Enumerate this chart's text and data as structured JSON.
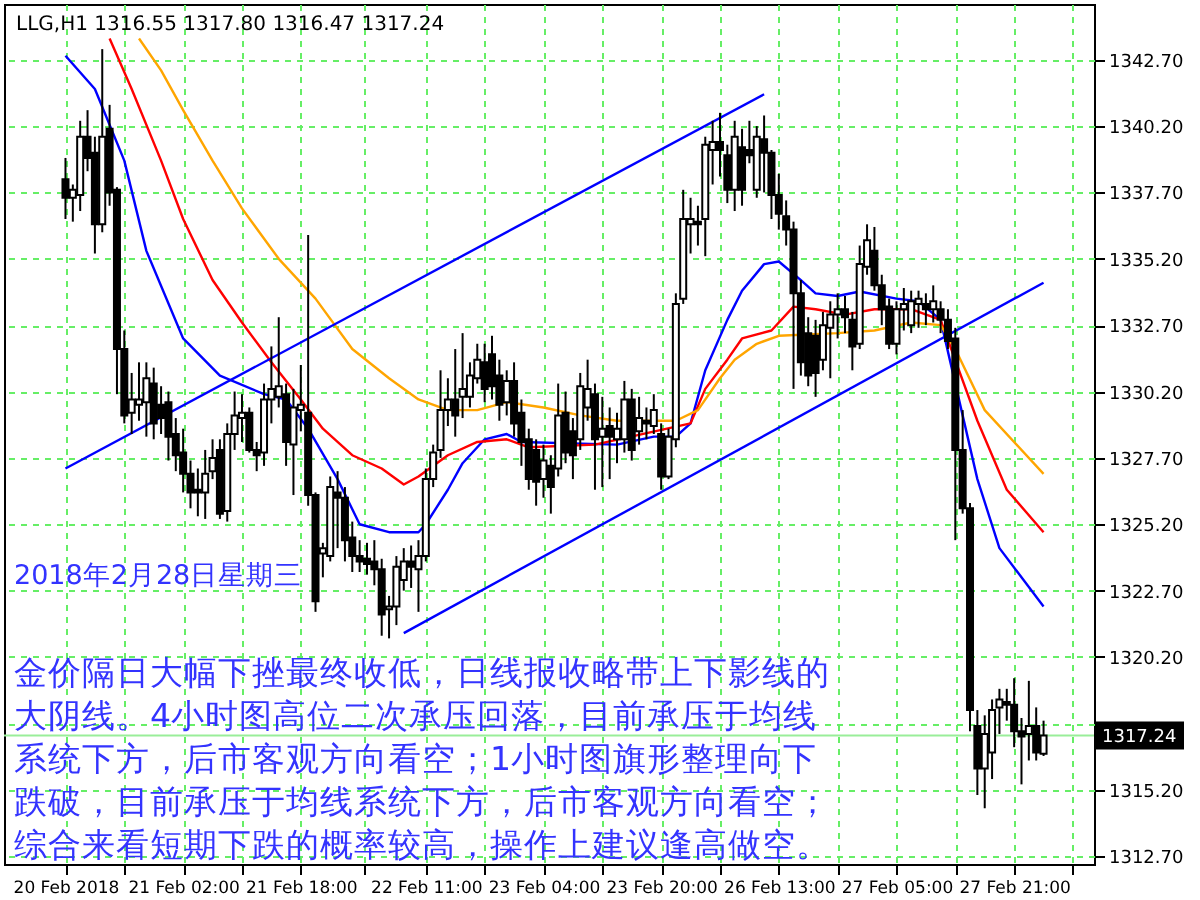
{
  "chart_data": {
    "type": "candlestick",
    "categories": [
      "20 Feb 2018",
      null,
      null,
      null,
      null,
      null,
      null,
      null,
      null,
      null,
      null,
      null,
      null,
      null,
      null,
      null,
      "21 Feb 02:00",
      null,
      null,
      null,
      null,
      null,
      null,
      null,
      null,
      null,
      null,
      null,
      null,
      null,
      null,
      null,
      "21 Feb 18:00",
      null,
      null,
      null,
      null,
      null,
      null,
      null,
      null,
      null,
      null,
      null,
      null,
      null,
      null,
      null,
      null,
      "22 Feb 11:00",
      null,
      null,
      null,
      null,
      null,
      null,
      null,
      null,
      null,
      null,
      null,
      null,
      null,
      null,
      null,
      "23 Feb 04:00",
      null,
      null,
      null,
      null,
      null,
      null,
      null,
      null,
      null,
      null,
      null,
      null,
      null,
      null,
      null,
      "23 Feb 20:00",
      null,
      null,
      null,
      null,
      null,
      null,
      null,
      null,
      null,
      null,
      null,
      null,
      null,
      null,
      null,
      "26 Feb 13:00",
      null,
      null,
      null,
      null,
      null,
      null,
      null,
      null,
      null,
      null,
      null,
      null,
      null,
      null,
      null,
      "27 Feb 05:00",
      null,
      null,
      null,
      null,
      null,
      null,
      null,
      null,
      null,
      null,
      null,
      null,
      null,
      null,
      null,
      "27 Feb 21:00",
      null,
      null,
      null,
      null
    ],
    "ohlc": [
      [
        1338.2,
        1339.0,
        1336.7,
        1337.5
      ],
      [
        1337.5,
        1338.0,
        1336.6,
        1337.8
      ],
      [
        1337.6,
        1340.4,
        1337.0,
        1339.8
      ],
      [
        1339.8,
        1340.8,
        1338.5,
        1339.0
      ],
      [
        1339.2,
        1339.8,
        1335.4,
        1336.5
      ],
      [
        1336.5,
        1343.1,
        1336.2,
        1339.8
      ],
      [
        1340.1,
        1341.0,
        1337.2,
        1337.7
      ],
      [
        1337.8,
        1337.9,
        1330.1,
        1331.8
      ],
      [
        1331.8,
        1332.5,
        1329.0,
        1329.3
      ],
      [
        1329.4,
        1330.9,
        1328.6,
        1329.9
      ],
      [
        1329.7,
        1331.3,
        1329.1,
        1329.9
      ],
      [
        1329.8,
        1331.3,
        1328.5,
        1330.7
      ],
      [
        1330.5,
        1331.1,
        1328.4,
        1329.0
      ],
      [
        1329.7,
        1330.4,
        1328.6,
        1329.2
      ],
      [
        1329.8,
        1330.2,
        1327.6,
        1328.5
      ],
      [
        1328.6,
        1329.2,
        1327.2,
        1327.8
      ],
      [
        1327.9,
        1328.8,
        1326.4,
        1327.1
      ],
      [
        1327.1,
        1327.6,
        1325.8,
        1326.4
      ],
      [
        1326.5,
        1327.3,
        1325.5,
        1326.4
      ],
      [
        1326.4,
        1328.0,
        1325.4,
        1327.1
      ],
      [
        1327.2,
        1328.4,
        1326.9,
        1327.7
      ],
      [
        1328.0,
        1328.4,
        1325.4,
        1325.6
      ],
      [
        1325.7,
        1329.0,
        1325.3,
        1328.6
      ],
      [
        1328.6,
        1330.2,
        1328.0,
        1329.3
      ],
      [
        1329.2,
        1330.1,
        1328.3,
        1329.4
      ],
      [
        1329.4,
        1329.6,
        1327.9,
        1328.0
      ],
      [
        1328.0,
        1328.3,
        1327.2,
        1327.8
      ],
      [
        1327.9,
        1330.5,
        1327.4,
        1329.9
      ],
      [
        1329.9,
        1331.9,
        1329.0,
        1330.3
      ],
      [
        1330.0,
        1333.0,
        1329.6,
        1330.4
      ],
      [
        1330.1,
        1330.5,
        1327.4,
        1328.3
      ],
      [
        1328.2,
        1330.3,
        1326.3,
        1329.6
      ],
      [
        1329.5,
        1331.2,
        1328.7,
        1329.7
      ],
      [
        1329.4,
        1336.1,
        1325.9,
        1326.3
      ],
      [
        1326.3,
        1326.4,
        1321.9,
        1322.3
      ],
      [
        1324.1,
        1324.5,
        1323.2,
        1324.3
      ],
      [
        1324.0,
        1327.0,
        1323.8,
        1326.6
      ],
      [
        1326.4,
        1327.2,
        1324.3,
        1326.2
      ],
      [
        1326.2,
        1326.6,
        1323.8,
        1324.6
      ],
      [
        1324.7,
        1325.3,
        1323.4,
        1324.0
      ],
      [
        1324.0,
        1324.6,
        1323.4,
        1323.8
      ],
      [
        1323.9,
        1324.5,
        1323.3,
        1323.7
      ],
      [
        1323.8,
        1324.6,
        1322.9,
        1323.5
      ],
      [
        1323.5,
        1323.9,
        1321.0,
        1321.8
      ],
      [
        1322.0,
        1322.5,
        1320.9,
        1322.1
      ],
      [
        1322.1,
        1324.0,
        1321.4,
        1323.6
      ],
      [
        1323.1,
        1324.3,
        1322.7,
        1323.8
      ],
      [
        1323.8,
        1324.4,
        1322.8,
        1323.6
      ],
      [
        1323.5,
        1324.6,
        1321.9,
        1324.0
      ],
      [
        1324.0,
        1327.3,
        1323.8,
        1326.9
      ],
      [
        1326.9,
        1328.2,
        1326.6,
        1327.9
      ],
      [
        1328.0,
        1331.0,
        1327.7,
        1329.5
      ],
      [
        1329.5,
        1330.7,
        1328.9,
        1329.9
      ],
      [
        1329.9,
        1331.8,
        1328.5,
        1329.3
      ],
      [
        1330.0,
        1332.4,
        1329.2,
        1330.3
      ],
      [
        1330.0,
        1331.3,
        1329.6,
        1330.8
      ],
      [
        1330.7,
        1332.0,
        1330.5,
        1331.4
      ],
      [
        1331.3,
        1332.0,
        1329.8,
        1330.3
      ],
      [
        1331.6,
        1332.3,
        1329.9,
        1330.4
      ],
      [
        1330.8,
        1331.4,
        1329.1,
        1329.7
      ],
      [
        1329.8,
        1331.0,
        1329.3,
        1330.6
      ],
      [
        1330.6,
        1331.3,
        1328.5,
        1329.0
      ],
      [
        1329.4,
        1329.9,
        1327.4,
        1328.3
      ],
      [
        1328.4,
        1328.8,
        1326.5,
        1326.9
      ],
      [
        1328.0,
        1328.4,
        1325.9,
        1326.8
      ],
      [
        1326.9,
        1328.2,
        1326.2,
        1327.6
      ],
      [
        1327.4,
        1327.8,
        1325.6,
        1326.6
      ],
      [
        1327.3,
        1330.5,
        1327.0,
        1329.3
      ],
      [
        1329.4,
        1330.2,
        1327.5,
        1327.9
      ],
      [
        1328.7,
        1329.2,
        1326.9,
        1327.8
      ],
      [
        1328.4,
        1330.9,
        1328.0,
        1330.4
      ],
      [
        1329.6,
        1331.4,
        1329.1,
        1330.3
      ],
      [
        1330.1,
        1330.5,
        1326.5,
        1328.4
      ],
      [
        1328.5,
        1330.0,
        1326.6,
        1328.8
      ],
      [
        1328.9,
        1329.6,
        1326.9,
        1328.5
      ],
      [
        1328.4,
        1329.4,
        1327.5,
        1328.8
      ],
      [
        1328.4,
        1330.6,
        1327.9,
        1329.9
      ],
      [
        1329.9,
        1330.3,
        1327.6,
        1328.0
      ],
      [
        1328.7,
        1330.0,
        1328.2,
        1329.2
      ],
      [
        1329.1,
        1329.6,
        1328.4,
        1329.0
      ],
      [
        1328.9,
        1330.1,
        1328.6,
        1329.5
      ],
      [
        1328.6,
        1329.0,
        1326.5,
        1327.0
      ],
      [
        1327.0,
        1328.8,
        1326.9,
        1328.5
      ],
      [
        1328.4,
        1333.9,
        1328.1,
        1333.5
      ],
      [
        1333.7,
        1337.8,
        1333.5,
        1336.7
      ],
      [
        1336.5,
        1337.5,
        1335.4,
        1336.7
      ],
      [
        1336.6,
        1337.2,
        1335.7,
        1336.5
      ],
      [
        1336.7,
        1339.8,
        1335.3,
        1339.5
      ],
      [
        1339.3,
        1340.4,
        1338.0,
        1339.6
      ],
      [
        1339.6,
        1340.7,
        1338.3,
        1339.3
      ],
      [
        1339.1,
        1339.5,
        1337.3,
        1337.8
      ],
      [
        1337.8,
        1340.4,
        1337.0,
        1339.8
      ],
      [
        1339.4,
        1340.1,
        1337.2,
        1337.8
      ],
      [
        1339.3,
        1340.4,
        1338.8,
        1339.1
      ],
      [
        1337.8,
        1340.2,
        1337.5,
        1339.8
      ],
      [
        1339.7,
        1340.6,
        1337.7,
        1339.2
      ],
      [
        1339.2,
        1339.3,
        1336.7,
        1337.6
      ],
      [
        1337.6,
        1338.4,
        1336.3,
        1336.9
      ],
      [
        1336.8,
        1337.4,
        1335.7,
        1336.3
      ],
      [
        1336.3,
        1336.6,
        1330.3,
        1333.9
      ],
      [
        1333.9,
        1334.4,
        1330.8,
        1331.3
      ],
      [
        1332.4,
        1333.0,
        1330.4,
        1330.8
      ],
      [
        1332.3,
        1332.9,
        1330.0,
        1330.9
      ],
      [
        1331.4,
        1333.2,
        1331.0,
        1332.7
      ],
      [
        1332.6,
        1333.6,
        1330.7,
        1333.1
      ],
      [
        1333.1,
        1333.9,
        1332.2,
        1333.3
      ],
      [
        1333.3,
        1333.8,
        1332.4,
        1333.0
      ],
      [
        1332.9,
        1333.2,
        1331.0,
        1331.9
      ],
      [
        1332.0,
        1335.7,
        1331.8,
        1335.0
      ],
      [
        1334.9,
        1336.5,
        1334.6,
        1335.9
      ],
      [
        1335.5,
        1336.4,
        1334.0,
        1334.2
      ],
      [
        1334.2,
        1334.6,
        1332.7,
        1333.3
      ],
      [
        1333.4,
        1333.7,
        1331.8,
        1332.0
      ],
      [
        1332.0,
        1333.6,
        1331.6,
        1333.3
      ],
      [
        1333.3,
        1334.1,
        1332.5,
        1333.5
      ],
      [
        1332.7,
        1334.0,
        1332.4,
        1333.6
      ],
      [
        1333.5,
        1334.0,
        1332.6,
        1333.7
      ],
      [
        1333.5,
        1333.9,
        1332.7,
        1333.3
      ],
      [
        1333.3,
        1334.2,
        1332.8,
        1333.6
      ],
      [
        1333.3,
        1333.6,
        1332.4,
        1332.9
      ],
      [
        1332.9,
        1333.3,
        1331.8,
        1332.1
      ],
      [
        1332.2,
        1332.6,
        1324.6,
        1328.0
      ],
      [
        1328.0,
        1329.5,
        1325.6,
        1325.8
      ],
      [
        1325.8,
        1326.0,
        1317.4,
        1318.2
      ],
      [
        1317.6,
        1318.2,
        1315.0,
        1316.0
      ],
      [
        1316.0,
        1318.0,
        1314.5,
        1317.3
      ],
      [
        1316.6,
        1318.6,
        1315.6,
        1318.2
      ],
      [
        1318.3,
        1319.0,
        1317.3,
        1318.6
      ],
      [
        1318.5,
        1319.0,
        1317.8,
        1318.4
      ],
      [
        1318.4,
        1319.4,
        1316.8,
        1317.4
      ],
      [
        1317.4,
        1317.9,
        1315.4,
        1317.2
      ],
      [
        1317.3,
        1319.3,
        1316.3,
        1317.6
      ],
      [
        1317.6,
        1318.3,
        1316.3,
        1316.6
      ],
      [
        1316.55,
        1317.8,
        1316.47,
        1317.24
      ]
    ],
    "series": [
      {
        "type": "line",
        "color": "#0000ff",
        "values": [
          1342.85,
          null,
          null,
          null,
          1341.6,
          null,
          null,
          null,
          1338.9,
          null,
          null,
          1335.5,
          null,
          null,
          null,
          null,
          1332.2,
          null,
          null,
          null,
          null,
          1330.8,
          null,
          null,
          null,
          null,
          null,
          1330.1,
          null,
          null,
          1329.9,
          null,
          null,
          1328.8,
          null,
          null,
          null,
          1326.9,
          null,
          null,
          1325.2,
          null,
          null,
          null,
          1324.9,
          null,
          null,
          null,
          1324.9,
          1325.2,
          null,
          null,
          1326.5,
          null,
          1327.5,
          null,
          null,
          1328.4,
          null,
          null,
          1328.6,
          null,
          1328.3,
          null,
          null,
          null,
          null,
          null,
          null,
          null,
          null,
          null,
          null,
          null,
          null,
          1328.2,
          null,
          null,
          null,
          null,
          1328.5,
          null,
          null,
          1328.5,
          null,
          1329.0,
          null,
          1331.0,
          null,
          null,
          1332.9,
          null,
          1334.0,
          null,
          null,
          1335.0,
          null,
          1335.1,
          null,
          null,
          1334.4,
          null,
          1333.9,
          null,
          null,
          1333.8,
          null,
          null,
          1333.97,
          null,
          null,
          null,
          null,
          1333.7,
          null,
          null,
          1333.6,
          null,
          null,
          1332.9,
          null,
          null,
          null,
          null,
          1326.9,
          null,
          null,
          1324.3,
          null,
          null,
          null,
          null,
          null,
          1322.1
        ]
      },
      {
        "type": "line",
        "color": "#ff0000",
        "values": [
          null,
          null,
          null,
          null,
          null,
          null,
          1343.5,
          null,
          null,
          1341.6,
          null,
          null,
          null,
          1338.9,
          null,
          null,
          1336.7,
          null,
          null,
          null,
          1334.4,
          null,
          null,
          null,
          1332.8,
          null,
          null,
          null,
          1331.3,
          null,
          null,
          null,
          1329.9,
          null,
          null,
          1328.8,
          null,
          null,
          null,
          1327.8,
          null,
          null,
          null,
          1327.3,
          null,
          null,
          1326.7,
          null,
          1327.0,
          null,
          null,
          null,
          1327.8,
          null,
          null,
          null,
          1328.3,
          null,
          null,
          null,
          1328.4,
          null,
          null,
          1328.1,
          null,
          null,
          null,
          null,
          null,
          null,
          null,
          null,
          1328.2,
          null,
          null,
          null,
          null,
          null,
          null,
          null,
          null,
          null,
          null,
          null,
          null,
          1329.0,
          null,
          1330.3,
          null,
          null,
          1331.4,
          null,
          1332.2,
          null,
          null,
          null,
          1332.5,
          null,
          null,
          1333.4,
          null,
          null,
          1333.3,
          null,
          null,
          null,
          1333.1,
          null,
          null,
          null,
          1333.3,
          null,
          null,
          null,
          null,
          1333.3,
          null,
          null,
          null,
          1332.9,
          null,
          null,
          null,
          null,
          1329.1,
          null,
          null,
          null,
          1326.5,
          null,
          null,
          null,
          null,
          1324.9
        ]
      },
      {
        "type": "line",
        "color": "#ffa500",
        "values": [
          null,
          null,
          null,
          null,
          null,
          null,
          null,
          null,
          null,
          null,
          1343.5,
          null,
          null,
          1342.3,
          null,
          null,
          1340.8,
          null,
          null,
          null,
          1338.9,
          null,
          null,
          null,
          1337.1,
          null,
          null,
          null,
          null,
          1335.2,
          null,
          null,
          null,
          null,
          1333.7,
          null,
          null,
          null,
          null,
          1331.8,
          null,
          null,
          null,
          null,
          1330.7,
          null,
          null,
          null,
          1329.9,
          null,
          null,
          null,
          1329.5,
          null,
          null,
          null,
          1329.5,
          null,
          null,
          null,
          1329.8,
          null,
          null,
          null,
          null,
          1329.6,
          null,
          null,
          null,
          null,
          1329.3,
          null,
          null,
          null,
          null,
          1329.1,
          null,
          null,
          null,
          null,
          null,
          null,
          null,
          1329.1,
          null,
          null,
          1329.5,
          null,
          null,
          1330.7,
          null,
          1331.4,
          null,
          null,
          1332.0,
          null,
          null,
          1332.3,
          null,
          null,
          null,
          null,
          null,
          null,
          null,
          1332.4,
          null,
          null,
          null,
          null,
          1332.5,
          null,
          null,
          null,
          null,
          1332.8,
          null,
          null,
          null,
          1332.7,
          null,
          1331.8,
          null,
          null,
          null,
          1329.5,
          null,
          null,
          null,
          null,
          null,
          null,
          null,
          1327.1
        ]
      },
      {
        "type": "line",
        "color": "#0000ff",
        "values": [
          1327.3,
          null,
          null,
          null,
          null,
          null,
          null,
          null,
          null,
          null,
          null,
          null,
          null,
          null,
          null,
          null,
          null,
          null,
          null,
          null,
          null,
          null,
          null,
          null,
          null,
          null,
          null,
          null,
          null,
          null,
          null,
          null,
          null,
          null,
          null,
          null,
          null,
          null,
          null,
          null,
          null,
          null,
          null,
          null,
          null,
          null,
          null,
          null,
          null,
          null,
          null,
          null,
          null,
          null,
          null,
          null,
          null,
          null,
          null,
          null,
          null,
          null,
          null,
          null,
          null,
          null,
          null,
          null,
          null,
          null,
          null,
          null,
          null,
          null,
          null,
          null,
          null,
          null,
          null,
          null,
          null,
          null,
          null,
          null,
          null,
          null,
          null,
          null,
          null,
          null,
          null,
          null,
          null,
          null,
          null,
          1341.4,
          null,
          null,
          null,
          null,
          null,
          null,
          null,
          null,
          null,
          null,
          null,
          null,
          null,
          null,
          null,
          null,
          null,
          null,
          null,
          null,
          null,
          null,
          null,
          null,
          null,
          null,
          null,
          null,
          null,
          null,
          null,
          null,
          null,
          null,
          null,
          null,
          null,
          null
        ]
      },
      {
        "type": "line",
        "color": "#0000ff",
        "values": [
          null,
          null,
          null,
          null,
          null,
          null,
          null,
          null,
          null,
          null,
          null,
          null,
          null,
          null,
          null,
          null,
          null,
          null,
          null,
          null,
          null,
          null,
          null,
          null,
          null,
          null,
          null,
          null,
          null,
          null,
          null,
          null,
          null,
          null,
          null,
          null,
          null,
          null,
          null,
          null,
          null,
          null,
          null,
          null,
          null,
          null,
          1321.1,
          null,
          null,
          null,
          null,
          null,
          null,
          null,
          null,
          null,
          null,
          null,
          null,
          null,
          null,
          null,
          null,
          null,
          null,
          null,
          null,
          null,
          null,
          null,
          null,
          null,
          null,
          null,
          null,
          null,
          null,
          null,
          null,
          null,
          null,
          null,
          null,
          null,
          null,
          null,
          null,
          null,
          null,
          null,
          null,
          null,
          null,
          null,
          null,
          null,
          null,
          null,
          null,
          null,
          null,
          null,
          null,
          null,
          null,
          null,
          null,
          null,
          null,
          null,
          null,
          null,
          null,
          null,
          null,
          null,
          null,
          null,
          null,
          null,
          null,
          null,
          null,
          null,
          null,
          null,
          null,
          null,
          null,
          null,
          null,
          null,
          null,
          1334.3
        ]
      }
    ],
    "ylim": [
      1312.4,
      1344.8
    ],
    "yticks": [
      {
        "value": 1312.7,
        "label": "1312.70"
      },
      {
        "value": 1315.2,
        "label": "1315.20"
      },
      {
        "value": 1317.7,
        "label": null
      },
      {
        "value": 1320.2,
        "label": "1320.20"
      },
      {
        "value": 1322.7,
        "label": "1322.70"
      },
      {
        "value": 1325.2,
        "label": "1325.20"
      },
      {
        "value": 1327.7,
        "label": "1327.70"
      },
      {
        "value": 1330.2,
        "label": "1330.20"
      },
      {
        "value": 1332.7,
        "label": "1332.70"
      },
      {
        "value": 1335.2,
        "label": "1335.20"
      },
      {
        "value": 1337.7,
        "label": "1337.70"
      },
      {
        "value": 1340.2,
        "label": "1340.20"
      },
      {
        "value": 1342.7,
        "label": "1342.70"
      }
    ],
    "grid": true,
    "ref_lines": [
      {
        "axis": "y",
        "value": 1317.24,
        "label": "1317.24",
        "color": "#99ee99"
      }
    ],
    "annotations": [
      "LLG,H1  1316.55 1317.80 1316.47 1317.24",
      "2018年2月28日星期三",
      "金价隔日大幅下挫最终收低，日线报收略带上下影线的",
      "大阴线。4小时图高位二次承压回落，目前承压于均线",
      "系统下方，后市客观方向看空；1小时图旗形整理向下",
      "跌破，目前承压于均线系统下方，后市客观方向看空；",
      "综合来看短期下跌的概率较高，操作上建议逢高做空。"
    ]
  }
}
